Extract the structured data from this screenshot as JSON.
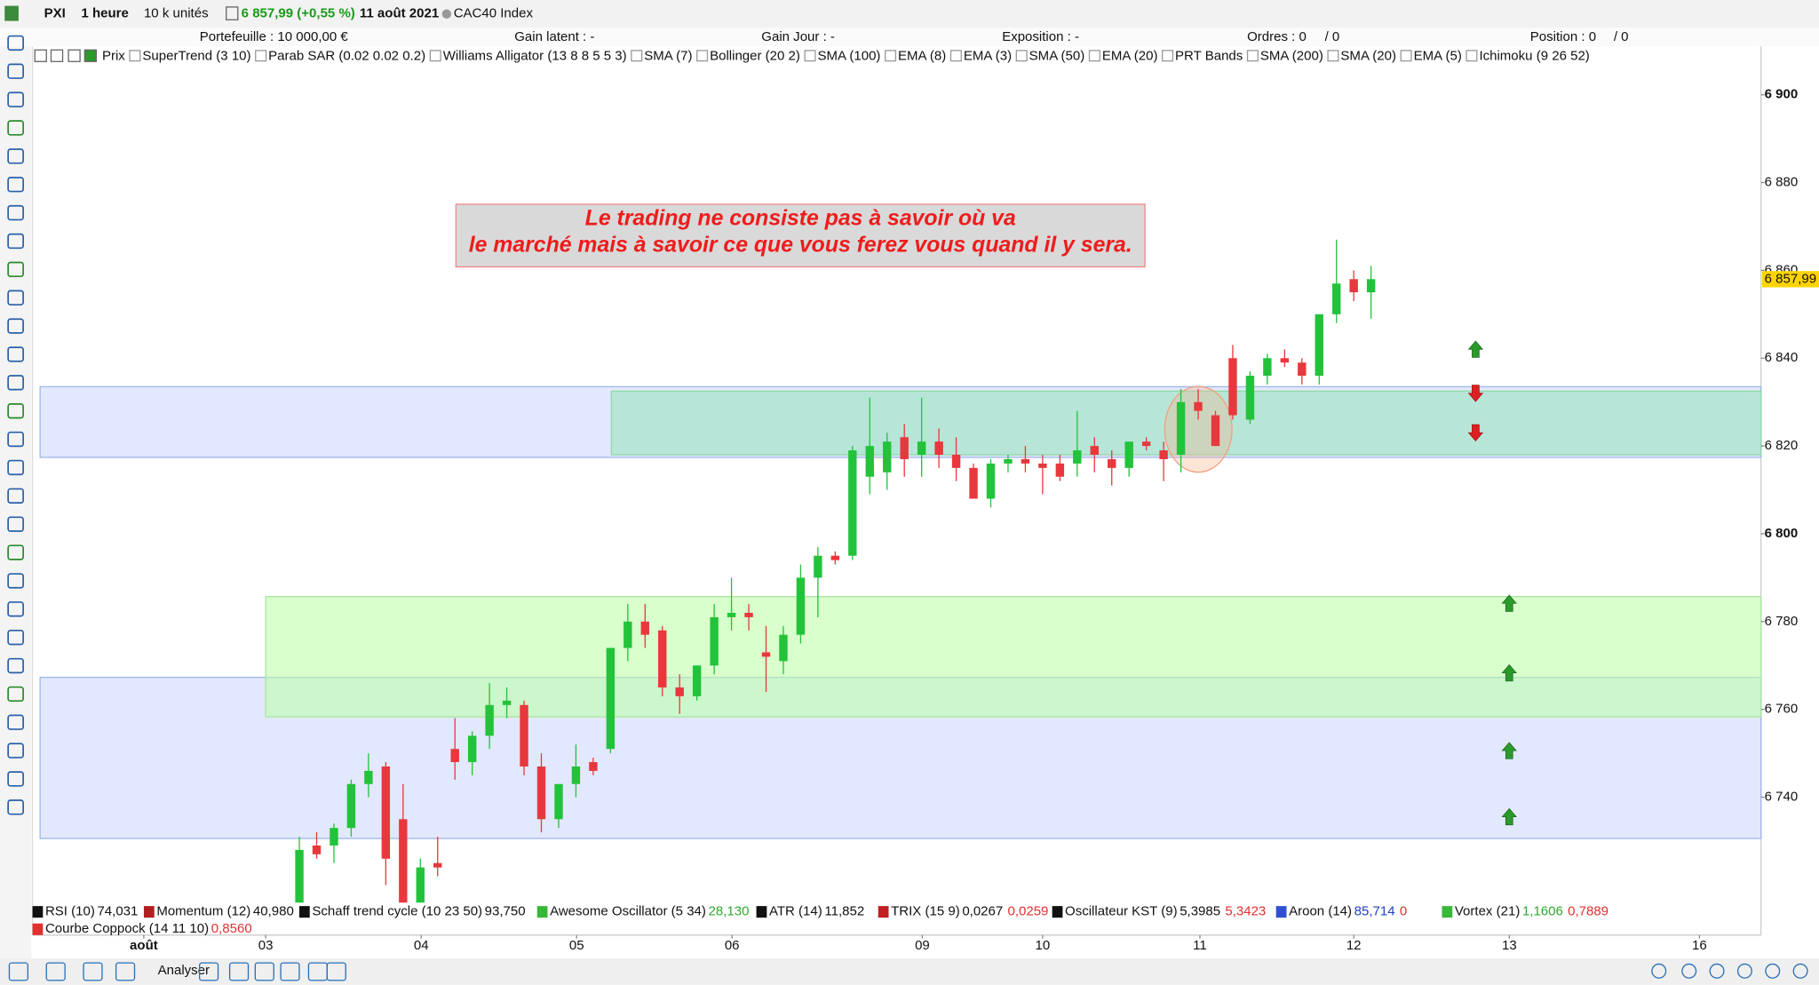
{
  "toolbar": {
    "symbol": "PXI",
    "timeframe": "1 heure",
    "units": "10 k unités",
    "price": "6 857,99 (+0,55 %)",
    "date": "11 août 2021",
    "instrument": "CAC40 Index"
  },
  "account": {
    "portfolio": "Portefeuille : 10 000,00 €",
    "latent": "Gain latent : -",
    "day": "Gain Jour : -",
    "exposure": "Exposition : -",
    "orders": "Ordres : 0",
    "orders_2": "/ 0",
    "position": "Position : 0",
    "position_2": "/ 0"
  },
  "overlays": [
    "Prix",
    "SuperTrend (3 10)",
    "Parab SAR (0.02 0.02 0.2)",
    "Williams Alligator (13 8 8 5 5 3)",
    "SMA (7)",
    "Bollinger (20 2)",
    "SMA (100)",
    "EMA (8)",
    "EMA (3)",
    "SMA (50)",
    "EMA (20)",
    "PRT Bands",
    "SMA (200)",
    "SMA (20)",
    "EMA (5)",
    "Ichimoku (9 26 52)"
  ],
  "indicators": [
    {
      "name": "RSI (10)",
      "swatch": "#111111",
      "values": [
        {
          "text": "74,031",
          "color": "#111111"
        }
      ]
    },
    {
      "name": "Momentum (12)",
      "swatch": "#b02020",
      "values": [
        {
          "text": "40,980",
          "color": "#111111"
        }
      ]
    },
    {
      "name": "Schaff trend cycle (10 23 50)",
      "swatch": "#111111",
      "values": [
        {
          "text": "93,750",
          "color": "#111111"
        }
      ]
    },
    {
      "name": "Awesome Oscillator (5 34)",
      "swatch": "#38b838",
      "values": [
        {
          "text": "28,130",
          "color": "#30a830"
        }
      ]
    },
    {
      "name": "ATR (14)",
      "swatch": "#111111",
      "values": [
        {
          "text": "11,852",
          "color": "#111111"
        }
      ]
    },
    {
      "name": "TRIX (15 9)",
      "swatch": "#c02020",
      "values": [
        {
          "text": "0,0267",
          "color": "#111111"
        },
        {
          "text": "0,0259",
          "color": "#e03030"
        }
      ]
    },
    {
      "name": "Oscillateur KST (9)",
      "swatch": "#111111",
      "values": [
        {
          "text": "5,3985",
          "color": "#111111"
        },
        {
          "text": "5,3423",
          "color": "#e03030"
        }
      ]
    },
    {
      "name": "Aroon (14)",
      "swatch": "#3050d0",
      "values": [
        {
          "text": "85,714",
          "color": "#2040c0"
        },
        {
          "text": "0",
          "color": "#e03030"
        }
      ]
    },
    {
      "name": "Vortex (21)",
      "swatch": "#38b838",
      "values": [
        {
          "text": "1,1606",
          "color": "#30a830"
        },
        {
          "text": "0,7889",
          "color": "#e03030"
        }
      ]
    },
    {
      "name": "Courbe Coppock (14 11 10)",
      "swatch": "#e03030",
      "values": [
        {
          "text": "0,8560",
          "color": "#e03030"
        }
      ]
    }
  ],
  "bottom_toolbar": {
    "analyze": "Analyser"
  },
  "chart_data": {
    "type": "candlestick",
    "annotation": [
      "Le trading ne consiste pas à savoir où va",
      "le marché mais à savoir ce que vous ferez vous quand il y sera."
    ],
    "up_color": "#22c33a",
    "down_color": "#e8383d",
    "open": [
      6716,
      6729,
      6729,
      6733,
      6743,
      6747,
      6735,
      6716,
      6725,
      6751,
      6748,
      6754,
      6761,
      6761,
      6747,
      6735,
      6743,
      6748,
      6751,
      6774,
      6780,
      6778,
      6765,
      6763,
      6770,
      6781,
      6782,
      6773,
      6771,
      6777,
      6790,
      6795,
      6795,
      6813,
      6814,
      6822,
      6818,
      6821,
      6818,
      6815,
      6808,
      6816,
      6817,
      6816,
      6816,
      6816,
      6820,
      6817,
      6815,
      6821,
      6819,
      6818,
      6830,
      6827,
      6840,
      6826,
      6836,
      6840,
      6839,
      6836,
      6850,
      6858,
      6855
    ],
    "high": [
      6731,
      6732,
      6734,
      6744,
      6750,
      6748,
      6743,
      6726,
      6731,
      6758,
      6755,
      6766,
      6765,
      6762,
      6750,
      6742,
      6752,
      6749,
      6774,
      6784,
      6784,
      6779,
      6768,
      6770,
      6784,
      6790,
      6784,
      6779,
      6779,
      6793,
      6797,
      6796,
      6820,
      6831,
      6823,
      6825,
      6831,
      6824,
      6822,
      6816,
      6817,
      6818,
      6820,
      6818,
      6818,
      6828,
      6822,
      6819,
      6821,
      6822,
      6821,
      6833,
      6833,
      6828,
      6843,
      6837,
      6841,
      6842,
      6840,
      6850,
      6867,
      6860,
      6861
    ],
    "low": [
      6716,
      6726,
      6725,
      6731,
      6740,
      6720,
      6716,
      6716,
      6722,
      6744,
      6745,
      6751,
      6758,
      6745,
      6732,
      6733,
      6740,
      6745,
      6750,
      6771,
      6774,
      6763,
      6759,
      6762,
      6768,
      6778,
      6778,
      6764,
      6768,
      6775,
      6781,
      6793,
      6794,
      6809,
      6810,
      6813,
      6813,
      6815,
      6812,
      6808,
      6806,
      6814,
      6814,
      6809,
      6812,
      6813,
      6814,
      6811,
      6813,
      6819,
      6812,
      6814,
      6826,
      6820,
      6826,
      6825,
      6834,
      6838,
      6834,
      6834,
      6848,
      6853,
      6849
    ],
    "close": [
      6728,
      6727,
      6733,
      6743,
      6746,
      6726,
      6716,
      6724,
      6724,
      6748,
      6754,
      6761,
      6762,
      6747,
      6735,
      6743,
      6747,
      6746,
      6774,
      6780,
      6777,
      6765,
      6763,
      6770,
      6781,
      6782,
      6781,
      6772,
      6777,
      6790,
      6795,
      6794,
      6819,
      6820,
      6821,
      6817,
      6821,
      6818,
      6815,
      6808,
      6816,
      6817,
      6816,
      6815,
      6813,
      6819,
      6818,
      6815,
      6821,
      6820,
      6817,
      6830,
      6828,
      6820,
      6827,
      6836,
      6840,
      6839,
      6836,
      6850,
      6857,
      6855,
      6858
    ],
    "zones": [
      {
        "low": 6730.6,
        "high": 6767.3,
        "start": -15,
        "color": "rgba(190,205,250,0.45)",
        "stroke": "#9fb6ea"
      },
      {
        "low": 6758.3,
        "high": 6785.7,
        "start": -1.95,
        "color": "rgba(190,255,170,0.6)",
        "stroke": "#a6e6a0"
      },
      {
        "low": 6817.4,
        "high": 6833.5,
        "start": -15,
        "color": "rgba(190,205,250,0.45)",
        "stroke": "#9fb6ea"
      },
      {
        "low": 6818,
        "high": 6832.5,
        "start": 18.05,
        "color": "rgba(120,225,160,0.4)",
        "stroke": "#8ed9a8"
      }
    ],
    "last_price": {
      "value": 6857.99,
      "label": "6 857,99"
    },
    "ylim": [
      6716,
      6911
    ],
    "yticks": [
      {
        "value": 6740,
        "label": "6 740"
      },
      {
        "value": 6760,
        "label": "6 760"
      },
      {
        "value": 6780,
        "label": "6 780"
      },
      {
        "value": 6800,
        "label": "6 800"
      },
      {
        "value": 6820,
        "label": "6 820"
      },
      {
        "value": 6840,
        "label": "6 840"
      },
      {
        "value": 6860,
        "label": "6 860"
      },
      {
        "value": 6880,
        "label": "6 880"
      },
      {
        "value": 6900,
        "label": "6 900"
      }
    ],
    "bold_yticks": [
      6800,
      6900
    ],
    "xlim": [
      -15.44,
      84.56
    ],
    "xticks": [
      {
        "value": -9,
        "label": "août"
      },
      {
        "value": -1.95,
        "label": "03"
      },
      {
        "value": 7.05,
        "label": "04"
      },
      {
        "value": 16.04,
        "label": "05"
      },
      {
        "value": 25.03,
        "label": "06"
      },
      {
        "value": 36.04,
        "label": "09"
      },
      {
        "value": 43,
        "label": "10"
      },
      {
        "value": 52.1,
        "label": "11"
      },
      {
        "value": 61,
        "label": "12"
      },
      {
        "value": 70,
        "label": "13"
      },
      {
        "value": 81,
        "label": "16"
      }
    ]
  }
}
